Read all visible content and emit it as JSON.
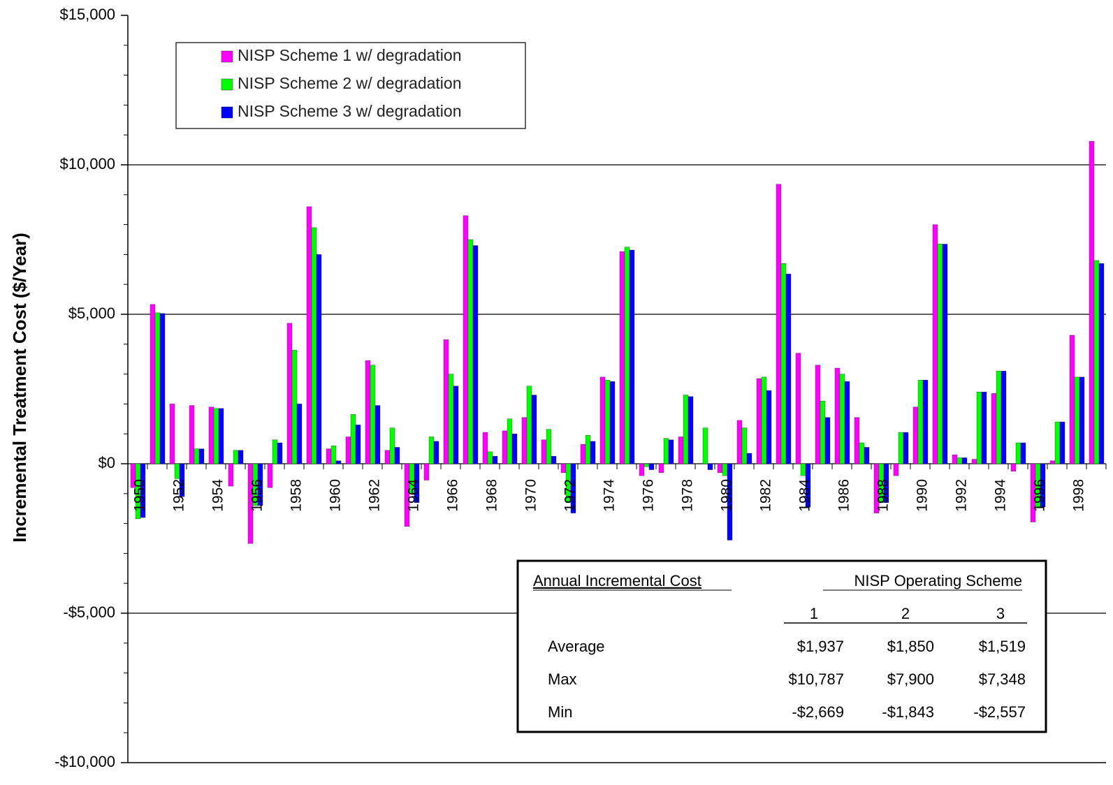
{
  "chart_data": {
    "type": "bar",
    "y_label": "Incremental Treatment Cost ($/Year)",
    "categories": [
      "1950",
      null,
      "1952",
      null,
      "1954",
      null,
      "1956",
      null,
      "1958",
      null,
      "1960",
      null,
      "1962",
      null,
      "1964",
      null,
      "1966",
      null,
      "1968",
      null,
      "1970",
      null,
      "1972",
      null,
      "1974",
      null,
      "1976",
      null,
      "1978",
      null,
      "1980",
      null,
      "1982",
      null,
      "1984",
      null,
      "1986",
      null,
      "1988",
      null,
      "1990",
      null,
      "1992",
      null,
      "1994",
      null,
      "1996",
      null,
      "1998",
      null
    ],
    "series": [
      {
        "name": "NISP Scheme 1 w/ degradation",
        "color": "#ff00ff",
        "values": [
          -800,
          5330,
          2000,
          1950,
          1900,
          -750,
          -2669,
          -800,
          4700,
          8600,
          500,
          900,
          3450,
          450,
          -2100,
          -550,
          4150,
          8300,
          1050,
          1100,
          1550,
          800,
          -300,
          650,
          2900,
          7100,
          -400,
          -300,
          900,
          0,
          -300,
          1450,
          2850,
          9350,
          3700,
          3300,
          3200,
          1550,
          -1650,
          -400,
          1900,
          8000,
          300,
          150,
          2350,
          -250,
          -1950,
          100,
          4300,
          10787
        ]
      },
      {
        "name": "NISP Scheme 2 w/ degradation",
        "color": "#00ff00",
        "values": [
          -1843,
          5050,
          -500,
          500,
          1850,
          450,
          -1400,
          800,
          3800,
          7900,
          600,
          1650,
          3300,
          1200,
          -1000,
          900,
          3000,
          7500,
          400,
          1500,
          2600,
          1150,
          -1300,
          950,
          2800,
          7250,
          -100,
          850,
          2300,
          1200,
          -400,
          1200,
          2900,
          6700,
          -400,
          2100,
          3000,
          700,
          -1300,
          1050,
          2800,
          7350,
          200,
          2400,
          3100,
          700,
          -1450,
          1400,
          2900,
          6800
        ]
      },
      {
        "name": "NISP Scheme 3 w/ degradation",
        "color": "#0000ff",
        "values": [
          -1800,
          5030,
          -1100,
          500,
          1850,
          450,
          -1400,
          700,
          2000,
          7000,
          100,
          1300,
          1950,
          550,
          -1300,
          750,
          2600,
          7300,
          250,
          1000,
          2300,
          250,
          -1650,
          750,
          2750,
          7150,
          -200,
          800,
          2250,
          -200,
          -2557,
          350,
          2450,
          6350,
          -1450,
          1550,
          2750,
          550,
          -1300,
          1050,
          2800,
          7348,
          200,
          2400,
          3100,
          700,
          -1450,
          1400,
          2900,
          6700
        ]
      }
    ],
    "ylim": [
      -10000,
      15000
    ],
    "yticks": [
      {
        "value": -10000,
        "label": "-$10,000"
      },
      {
        "value": -5000,
        "label": "-$5,000"
      },
      {
        "value": 0,
        "label": "$0"
      },
      {
        "value": 5000,
        "label": "$5,000"
      },
      {
        "value": 10000,
        "label": "$10,000"
      },
      {
        "value": 15000,
        "label": "$15,000"
      }
    ],
    "grid": true,
    "legend": "upper left",
    "table": {
      "title": "Annual Incremental Cost",
      "header": "NISP Operating Scheme",
      "columns": [
        "1",
        "2",
        "3"
      ],
      "rows": [
        {
          "label": "Average",
          "values": [
            "$1,937",
            "$1,850",
            "$1,519"
          ]
        },
        {
          "label": "Max",
          "values": [
            "$10,787",
            "$7,900",
            "$7,348"
          ]
        },
        {
          "label": "Min",
          "values": [
            "-$2,669",
            "-$1,843",
            "-$2,557"
          ]
        }
      ]
    }
  }
}
